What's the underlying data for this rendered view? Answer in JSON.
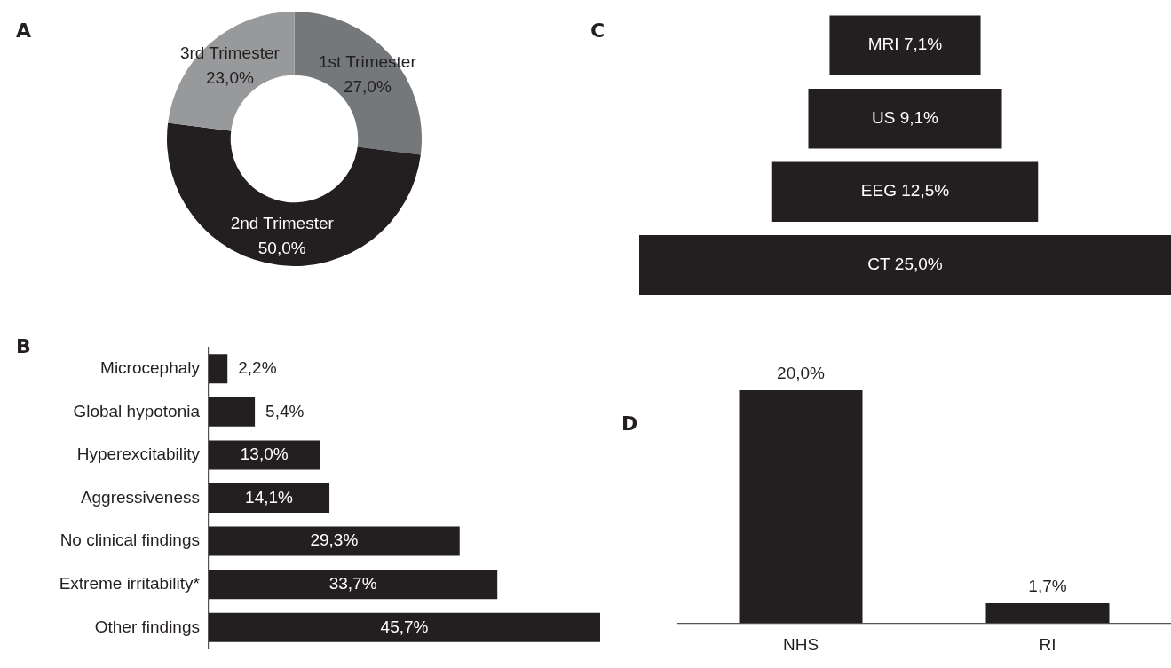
{
  "chart_data": [
    {
      "type": "donut",
      "title": "A",
      "categories": [
        "1st Trimester",
        "2nd Trimester",
        "3rd Trimester"
      ],
      "values": [
        27.0,
        50.0,
        23.0
      ],
      "value_labels": [
        "27,0%",
        "50,0%",
        "23,0%"
      ],
      "colors": [
        "#75787b",
        "#231f20",
        "#97999b"
      ]
    },
    {
      "type": "other",
      "title": "C",
      "categories": [
        "MRI",
        "US",
        "EEG",
        "CT"
      ],
      "values": [
        7.1,
        9.1,
        12.5,
        25.0
      ],
      "value_labels": [
        "7,1%",
        "9,1%",
        "12,5%",
        "25,0%"
      ],
      "color": "#231f20"
    },
    {
      "type": "bar",
      "orientation": "horizontal",
      "title": "B",
      "categories": [
        "Microcephaly",
        "Global hypotonia",
        "Hyperexcitability",
        "Aggressiveness",
        "No clinical findings",
        "Extreme irritability*",
        "Other findings"
      ],
      "values": [
        2.2,
        5.4,
        13.0,
        14.1,
        29.3,
        33.7,
        45.7
      ],
      "value_labels": [
        "2,2%",
        "5,4%",
        "13,0%",
        "14,1%",
        "29,3%",
        "33,7%",
        "45,7%"
      ],
      "color": "#231f20"
    },
    {
      "type": "bar",
      "title": "D",
      "categories": [
        "NHS",
        "RI"
      ],
      "values": [
        20.0,
        1.7
      ],
      "value_labels": [
        "20,0%",
        "1,7%"
      ],
      "color": "#231f20"
    }
  ]
}
